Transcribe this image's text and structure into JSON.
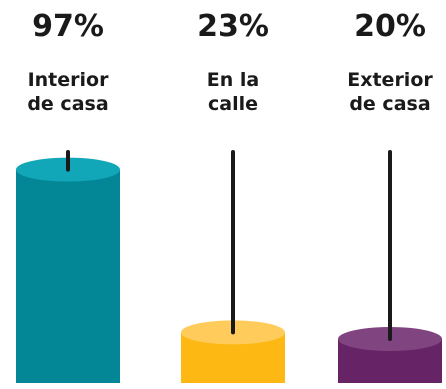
{
  "chart_data": {
    "type": "bar",
    "categories": [
      [
        "Interior",
        "de casa"
      ],
      [
        "En la",
        "calle"
      ],
      [
        "Exterior",
        "de casa"
      ]
    ],
    "values": [
      97,
      23,
      20
    ],
    "value_labels": [
      "97%",
      "23%",
      "20%"
    ],
    "colors": [
      {
        "body": "#038696",
        "top": "#11a7b8"
      },
      {
        "body": "#fdb813",
        "top": "#ffcc5c"
      },
      {
        "body": "#662466",
        "top": "#804480"
      }
    ],
    "stick_color": "#1a1a1a",
    "ylim": [
      0,
      100
    ]
  }
}
